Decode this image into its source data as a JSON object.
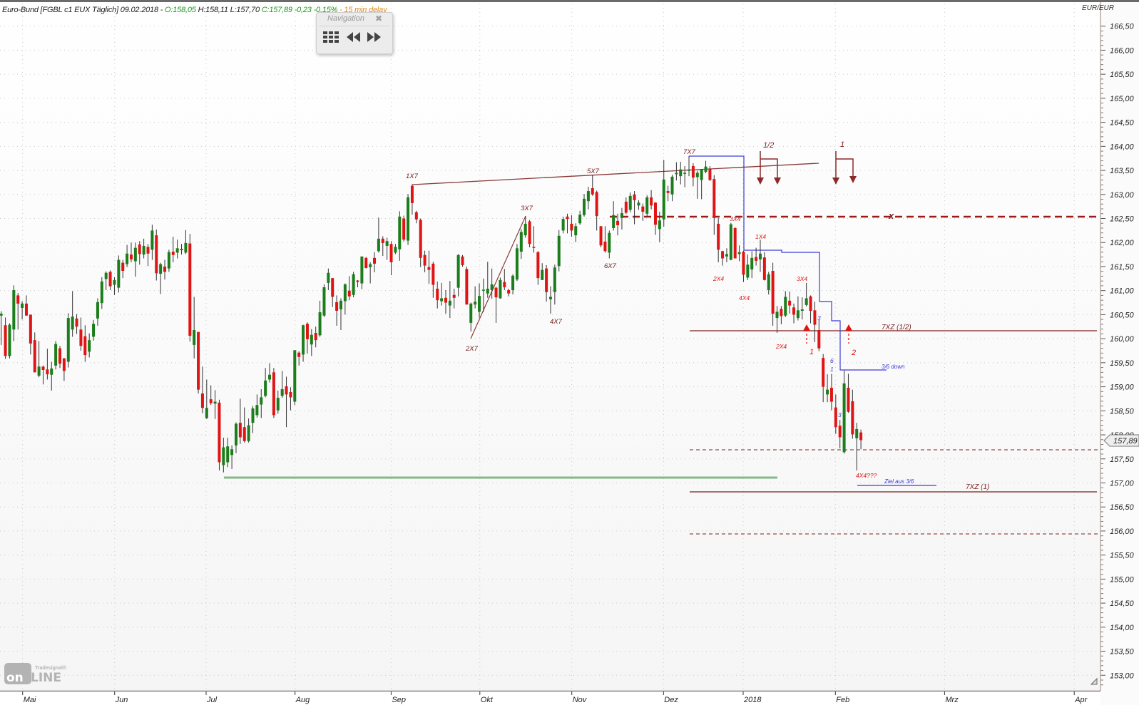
{
  "header": {
    "instrument": "Euro-Bund [FGBL c1 EUX Täglich] 09.02.2018 - ",
    "open": "O:158,05",
    "high_low": " H:158,11 L:157,70 ",
    "close_change": "C:157,89 -0,23 -0,15%",
    "delay": " - 15 min delay"
  },
  "navigation": {
    "title": "Navigation",
    "close_icon": "close-icon",
    "buttons": [
      {
        "icon": "grid-icon"
      },
      {
        "icon": "rewind-icon"
      },
      {
        "icon": "fast-forward-icon"
      }
    ]
  },
  "logo": {
    "brand": "Tradesignal®",
    "text": "onLINE"
  },
  "colors": {
    "up": "#1b7d1b",
    "down": "#e01414",
    "wick": "#333333",
    "annotation": "#7b1f1f",
    "signal": "#e01414",
    "blue": "#3c3cd8",
    "support": "#86b886"
  },
  "price_tag": "157,89",
  "chart_data": {
    "type": "candlestick",
    "title": "Euro-Bund [FGBL c1 EUX Täglich]",
    "ylabel": "EUR/EUR",
    "ylim": [
      153.0,
      166.5
    ],
    "y_ticks": [
      "166,50",
      "166,00",
      "165,50",
      "165,00",
      "164,50",
      "164,00",
      "163,50",
      "163,00",
      "162,50",
      "162,00",
      "161,50",
      "161,00",
      "160,50",
      "160,00",
      "159,50",
      "159,00",
      "158,50",
      "158,00",
      "157,50",
      "157,00",
      "156,50",
      "156,00",
      "155,50",
      "155,00",
      "154,50",
      "154,00",
      "153,50",
      "153,00"
    ],
    "x_ticks": [
      "Mai",
      "Jun",
      "Jul",
      "Aug",
      "Sep",
      "Okt",
      "Nov",
      "Dez",
      "2018",
      "Feb",
      "Mrz",
      "Apr"
    ],
    "grid": true,
    "last": {
      "date": "09.02.2018",
      "open": 158.05,
      "high": 158.11,
      "low": 157.7,
      "close": 157.89
    },
    "ohlc_fields": [
      "open",
      "high",
      "low",
      "close"
    ],
    "ohlc": [
      [
        160.48,
        160.57,
        159.87,
        160.52
      ],
      [
        160.28,
        160.44,
        159.58,
        159.64
      ],
      [
        159.64,
        160.32,
        159.59,
        160.29
      ],
      [
        160.19,
        161.11,
        159.95,
        161.01
      ],
      [
        160.9,
        160.95,
        160.19,
        160.73
      ],
      [
        160.64,
        160.78,
        160.4,
        160.73
      ],
      [
        160.73,
        160.9,
        160.48,
        160.48
      ],
      [
        160.5,
        160.5,
        159.67,
        159.9
      ],
      [
        159.97,
        160.13,
        159.3,
        159.3
      ],
      [
        159.23,
        159.95,
        159.2,
        159.42
      ],
      [
        159.42,
        159.44,
        159.05,
        159.35
      ],
      [
        159.36,
        159.79,
        159.15,
        159.26
      ],
      [
        159.25,
        159.52,
        158.92,
        159.38
      ],
      [
        159.44,
        159.95,
        159.36,
        159.89
      ],
      [
        159.8,
        159.85,
        159.39,
        159.48
      ],
      [
        159.59,
        159.6,
        159.12,
        159.33
      ],
      [
        159.52,
        160.53,
        159.4,
        160.43
      ],
      [
        160.19,
        160.99,
        160.04,
        160.46
      ],
      [
        160.42,
        160.51,
        160.1,
        160.25
      ],
      [
        160.19,
        160.44,
        159.75,
        159.85
      ],
      [
        160.05,
        160.28,
        159.52,
        159.66
      ],
      [
        159.73,
        160.11,
        159.61,
        159.97
      ],
      [
        160.04,
        160.39,
        159.96,
        160.31
      ],
      [
        160.42,
        160.84,
        160.27,
        160.76
      ],
      [
        160.74,
        161.28,
        160.62,
        161.19
      ],
      [
        161.24,
        161.4,
        161.01,
        161.37
      ],
      [
        161.39,
        161.42,
        161.01,
        161.09
      ],
      [
        161.12,
        161.28,
        160.91,
        161.22
      ],
      [
        161.06,
        161.73,
        160.96,
        161.64
      ],
      [
        161.58,
        161.64,
        161.26,
        161.41
      ],
      [
        161.55,
        161.95,
        161.49,
        161.77
      ],
      [
        161.75,
        162.0,
        161.59,
        161.65
      ],
      [
        161.61,
        162.0,
        161.29,
        161.89
      ],
      [
        161.96,
        162.03,
        161.54,
        161.76
      ],
      [
        161.75,
        162.08,
        161.67,
        161.93
      ],
      [
        161.91,
        161.97,
        161.51,
        161.77
      ],
      [
        161.85,
        162.37,
        161.64,
        162.25
      ],
      [
        162.15,
        162.27,
        161.21,
        161.36
      ],
      [
        161.35,
        161.58,
        160.93,
        161.55
      ],
      [
        161.5,
        161.64,
        161.23,
        161.39
      ],
      [
        161.46,
        161.85,
        161.39,
        161.8
      ],
      [
        161.81,
        162.12,
        161.59,
        161.74
      ],
      [
        161.79,
        162.06,
        161.67,
        161.88
      ],
      [
        161.87,
        161.97,
        161.75,
        161.84
      ],
      [
        161.79,
        162.26,
        161.76,
        161.99
      ],
      [
        161.98,
        162.18,
        159.94,
        160.06
      ],
      [
        159.87,
        160.87,
        159.59,
        160.18
      ],
      [
        160.14,
        160.14,
        158.86,
        158.94
      ],
      [
        158.86,
        159.42,
        158.45,
        158.56
      ],
      [
        158.35,
        159.15,
        158.33,
        158.56
      ],
      [
        158.74,
        159.03,
        158.62,
        158.66
      ],
      [
        158.65,
        158.93,
        158.33,
        158.69
      ],
      [
        158.67,
        158.73,
        157.26,
        157.43
      ],
      [
        157.37,
        157.94,
        157.22,
        157.74
      ],
      [
        157.43,
        157.94,
        157.33,
        157.76
      ],
      [
        157.58,
        157.78,
        157.29,
        157.7
      ],
      [
        157.78,
        158.26,
        157.62,
        158.23
      ],
      [
        158.25,
        158.75,
        157.81,
        157.95
      ],
      [
        158.16,
        158.57,
        157.84,
        157.87
      ],
      [
        157.87,
        158.34,
        157.84,
        158.2
      ],
      [
        158.25,
        158.6,
        158.04,
        158.55
      ],
      [
        158.41,
        158.84,
        158.36,
        158.62
      ],
      [
        158.63,
        158.95,
        158.35,
        158.78
      ],
      [
        158.81,
        159.39,
        158.78,
        159.13
      ],
      [
        159.15,
        159.49,
        159.09,
        159.25
      ],
      [
        159.3,
        159.39,
        158.35,
        158.41
      ],
      [
        158.51,
        158.92,
        158.44,
        158.77
      ],
      [
        158.81,
        159.33,
        158.77,
        158.95
      ],
      [
        159.01,
        159.21,
        158.16,
        158.84
      ],
      [
        158.89,
        158.99,
        158.51,
        158.78
      ],
      [
        158.69,
        159.76,
        158.62,
        159.76
      ],
      [
        159.71,
        159.74,
        159.44,
        159.62
      ],
      [
        159.67,
        160.29,
        159.52,
        160.28
      ],
      [
        160.31,
        160.34,
        159.69,
        159.99
      ],
      [
        159.88,
        160.2,
        159.64,
        160.08
      ],
      [
        160.12,
        160.25,
        159.82,
        159.97
      ],
      [
        160.07,
        160.79,
        160.04,
        160.55
      ],
      [
        160.48,
        161.13,
        160.45,
        161.07
      ],
      [
        161.16,
        161.46,
        161.01,
        161.37
      ],
      [
        161.26,
        161.26,
        160.66,
        160.87
      ],
      [
        160.76,
        160.9,
        160.27,
        160.58
      ],
      [
        160.61,
        160.84,
        160.18,
        160.79
      ],
      [
        160.78,
        161.15,
        160.5,
        161.13
      ],
      [
        161.0,
        161.3,
        160.8,
        160.88
      ],
      [
        160.91,
        161.39,
        160.86,
        161.34
      ],
      [
        161.21,
        161.22,
        161.07,
        161.18
      ],
      [
        161.15,
        161.71,
        161.03,
        161.71
      ],
      [
        161.68,
        161.7,
        161.46,
        161.47
      ],
      [
        161.49,
        161.59,
        161.15,
        161.55
      ],
      [
        161.68,
        161.8,
        161.38,
        161.56
      ],
      [
        161.82,
        162.52,
        161.79,
        162.08
      ],
      [
        162.08,
        162.13,
        161.72,
        161.99
      ],
      [
        161.93,
        162.1,
        161.64,
        162.03
      ],
      [
        161.97,
        162.03,
        161.32,
        161.59
      ],
      [
        161.79,
        161.97,
        161.76,
        161.91
      ],
      [
        161.86,
        162.65,
        161.62,
        162.54
      ],
      [
        162.5,
        162.56,
        162.02,
        162.06
      ],
      [
        162.04,
        163.01,
        161.95,
        162.94
      ],
      [
        163.18,
        163.21,
        162.58,
        162.82
      ],
      [
        162.63,
        162.66,
        162.4,
        162.48
      ],
      [
        162.47,
        162.5,
        161.49,
        161.68
      ],
      [
        161.74,
        161.83,
        161.38,
        161.52
      ],
      [
        161.49,
        161.83,
        161.14,
        161.43
      ],
      [
        161.56,
        161.6,
        160.85,
        161.12
      ],
      [
        161.04,
        161.19,
        160.63,
        160.8
      ],
      [
        160.78,
        161.16,
        160.69,
        160.84
      ],
      [
        160.85,
        161.01,
        160.52,
        160.75
      ],
      [
        160.69,
        161.2,
        160.43,
        160.79
      ],
      [
        160.91,
        161.04,
        160.63,
        160.85
      ],
      [
        161.06,
        161.76,
        160.88,
        161.74
      ],
      [
        161.71,
        161.74,
        161.5,
        161.53
      ],
      [
        161.45,
        161.5,
        160.71,
        160.71
      ],
      [
        160.33,
        160.75,
        160.15,
        160.73
      ],
      [
        160.71,
        161.09,
        160.63,
        160.77
      ],
      [
        160.56,
        161.15,
        160.44,
        160.89
      ],
      [
        161.0,
        161.25,
        160.56,
        161.02
      ],
      [
        160.94,
        161.6,
        160.85,
        161.04
      ],
      [
        161.01,
        161.46,
        160.83,
        161.13
      ],
      [
        161.06,
        161.08,
        160.33,
        160.86
      ],
      [
        160.84,
        161.27,
        160.83,
        161.22
      ],
      [
        161.18,
        161.45,
        161.01,
        161.07
      ],
      [
        161.01,
        161.04,
        160.88,
        160.94
      ],
      [
        161.01,
        161.34,
        160.92,
        161.31
      ],
      [
        161.23,
        161.97,
        161.2,
        161.88
      ],
      [
        161.81,
        162.28,
        161.66,
        162.22
      ],
      [
        162.15,
        162.55,
        162.1,
        162.39
      ],
      [
        162.44,
        162.47,
        161.9,
        161.97
      ],
      [
        161.91,
        162.34,
        161.79,
        161.89
      ],
      [
        161.8,
        161.82,
        161.12,
        161.26
      ],
      [
        161.22,
        161.57,
        161.22,
        161.43
      ],
      [
        161.46,
        161.53,
        160.77,
        160.97
      ],
      [
        160.82,
        161.09,
        160.52,
        160.87
      ],
      [
        160.97,
        161.54,
        160.71,
        161.48
      ],
      [
        161.51,
        162.26,
        161.4,
        162.14
      ],
      [
        162.25,
        162.54,
        162.19,
        162.49
      ],
      [
        162.54,
        162.6,
        162.19,
        162.49
      ],
      [
        162.39,
        162.57,
        162.12,
        162.25
      ],
      [
        162.15,
        162.4,
        162.01,
        162.34
      ],
      [
        162.4,
        162.66,
        162.37,
        162.58
      ],
      [
        162.57,
        163.01,
        162.54,
        162.91
      ],
      [
        162.86,
        163.16,
        162.69,
        163.07
      ],
      [
        163.13,
        163.41,
        162.97,
        163.0
      ],
      [
        163.05,
        163.08,
        162.25,
        162.55
      ],
      [
        162.34,
        162.34,
        161.9,
        161.94
      ],
      [
        162.02,
        162.34,
        161.79,
        161.82
      ],
      [
        161.79,
        162.25,
        161.67,
        162.2
      ],
      [
        162.3,
        162.86,
        162.25,
        162.57
      ],
      [
        162.45,
        162.6,
        162.15,
        162.36
      ],
      [
        162.51,
        162.72,
        162.27,
        162.61
      ],
      [
        162.85,
        162.94,
        162.59,
        162.62
      ],
      [
        162.68,
        163.04,
        162.63,
        162.97
      ],
      [
        163.0,
        163.07,
        162.38,
        162.88
      ],
      [
        162.77,
        162.88,
        162.68,
        162.83
      ],
      [
        162.75,
        162.81,
        162.45,
        162.64
      ],
      [
        162.6,
        162.98,
        162.54,
        162.94
      ],
      [
        162.94,
        163.09,
        162.69,
        162.77
      ],
      [
        162.83,
        162.84,
        162.16,
        162.37
      ],
      [
        162.28,
        162.64,
        162.01,
        162.46
      ],
      [
        162.48,
        163.72,
        162.33,
        163.31
      ],
      [
        163.07,
        163.18,
        162.86,
        163.03
      ],
      [
        163.0,
        163.41,
        162.86,
        163.37
      ],
      [
        163.42,
        163.67,
        163.29,
        163.45
      ],
      [
        163.38,
        163.68,
        163.21,
        163.52
      ],
      [
        163.44,
        163.59,
        163.15,
        163.45
      ],
      [
        163.49,
        163.8,
        163.38,
        163.52
      ],
      [
        163.59,
        163.65,
        163.17,
        163.35
      ],
      [
        163.36,
        163.49,
        162.91,
        163.45
      ],
      [
        163.3,
        163.53,
        162.9,
        163.52
      ],
      [
        163.47,
        163.7,
        163.44,
        163.58
      ],
      [
        163.53,
        163.59,
        163.28,
        163.3
      ],
      [
        163.32,
        163.4,
        162.16,
        162.51
      ],
      [
        162.39,
        162.51,
        161.59,
        161.85
      ],
      [
        161.82,
        161.83,
        161.52,
        161.67
      ],
      [
        161.71,
        161.88,
        161.59,
        161.76
      ],
      [
        161.64,
        162.41,
        161.63,
        162.38
      ],
      [
        162.3,
        162.32,
        161.67,
        161.67
      ],
      [
        161.76,
        161.94,
        161.61,
        161.8
      ],
      [
        161.81,
        161.83,
        161.18,
        161.33
      ],
      [
        161.27,
        161.75,
        161.22,
        161.54
      ],
      [
        161.44,
        161.82,
        161.26,
        161.68
      ],
      [
        161.7,
        161.89,
        161.52,
        161.62
      ],
      [
        161.65,
        162.06,
        161.39,
        161.77
      ],
      [
        161.69,
        161.8,
        161.21,
        161.22
      ],
      [
        161.01,
        161.39,
        160.92,
        161.34
      ],
      [
        161.41,
        161.58,
        160.27,
        160.52
      ],
      [
        160.43,
        160.68,
        160.12,
        160.56
      ],
      [
        160.62,
        160.68,
        160.3,
        160.47
      ],
      [
        160.48,
        160.99,
        160.45,
        160.87
      ],
      [
        160.79,
        160.98,
        160.52,
        160.69
      ],
      [
        160.65,
        160.73,
        160.32,
        160.5
      ],
      [
        160.43,
        160.88,
        160.38,
        160.59
      ],
      [
        160.58,
        160.86,
        160.4,
        160.61
      ],
      [
        160.7,
        161.16,
        160.67,
        160.84
      ],
      [
        160.88,
        160.9,
        160.32,
        160.58
      ],
      [
        160.59,
        160.77,
        159.93,
        160.29
      ],
      [
        160.18,
        160.39,
        159.74,
        159.8
      ],
      [
        159.6,
        159.68,
        158.68,
        159.0
      ],
      [
        158.84,
        159.26,
        158.68,
        158.94
      ],
      [
        158.98,
        159.27,
        158.51,
        158.69
      ],
      [
        158.57,
        158.84,
        158.02,
        158.16
      ],
      [
        158.19,
        158.31,
        157.72,
        157.95
      ],
      [
        157.64,
        159.34,
        157.61,
        159.07
      ],
      [
        158.98,
        159.27,
        158.46,
        158.48
      ],
      [
        158.7,
        158.94,
        157.92,
        158.01
      ],
      [
        157.93,
        158.25,
        157.26,
        158.12
      ],
      [
        158.05,
        158.11,
        157.7,
        157.89
      ]
    ]
  },
  "annotations": {
    "wave_labels": {
      "p1": "1X7",
      "p2": "2X7",
      "p3": "3X7",
      "p4": "4X7",
      "p5": "5X7",
      "p6": "6X7",
      "p7": "7X7"
    },
    "signal_labels": {
      "a3": "3X4",
      "a2": "2X4",
      "a4": "4X4",
      "a1": "1X4",
      "b3": "3X4",
      "b2": "2X4",
      "b4": "4X4???",
      "n1": "1",
      "n2": "2"
    },
    "blue_labels": {
      "c3": "3",
      "c6": "6",
      "c1": "1",
      "c3b": "3",
      "down": "3/6 down",
      "target": "Ziel aus 3/6"
    },
    "levels": {
      "zone_half": "7XZ (1/2)",
      "zone_full": "7XZ (1)",
      "marker": "x"
    },
    "arrows": {
      "half": "1/2",
      "full": "1"
    }
  }
}
